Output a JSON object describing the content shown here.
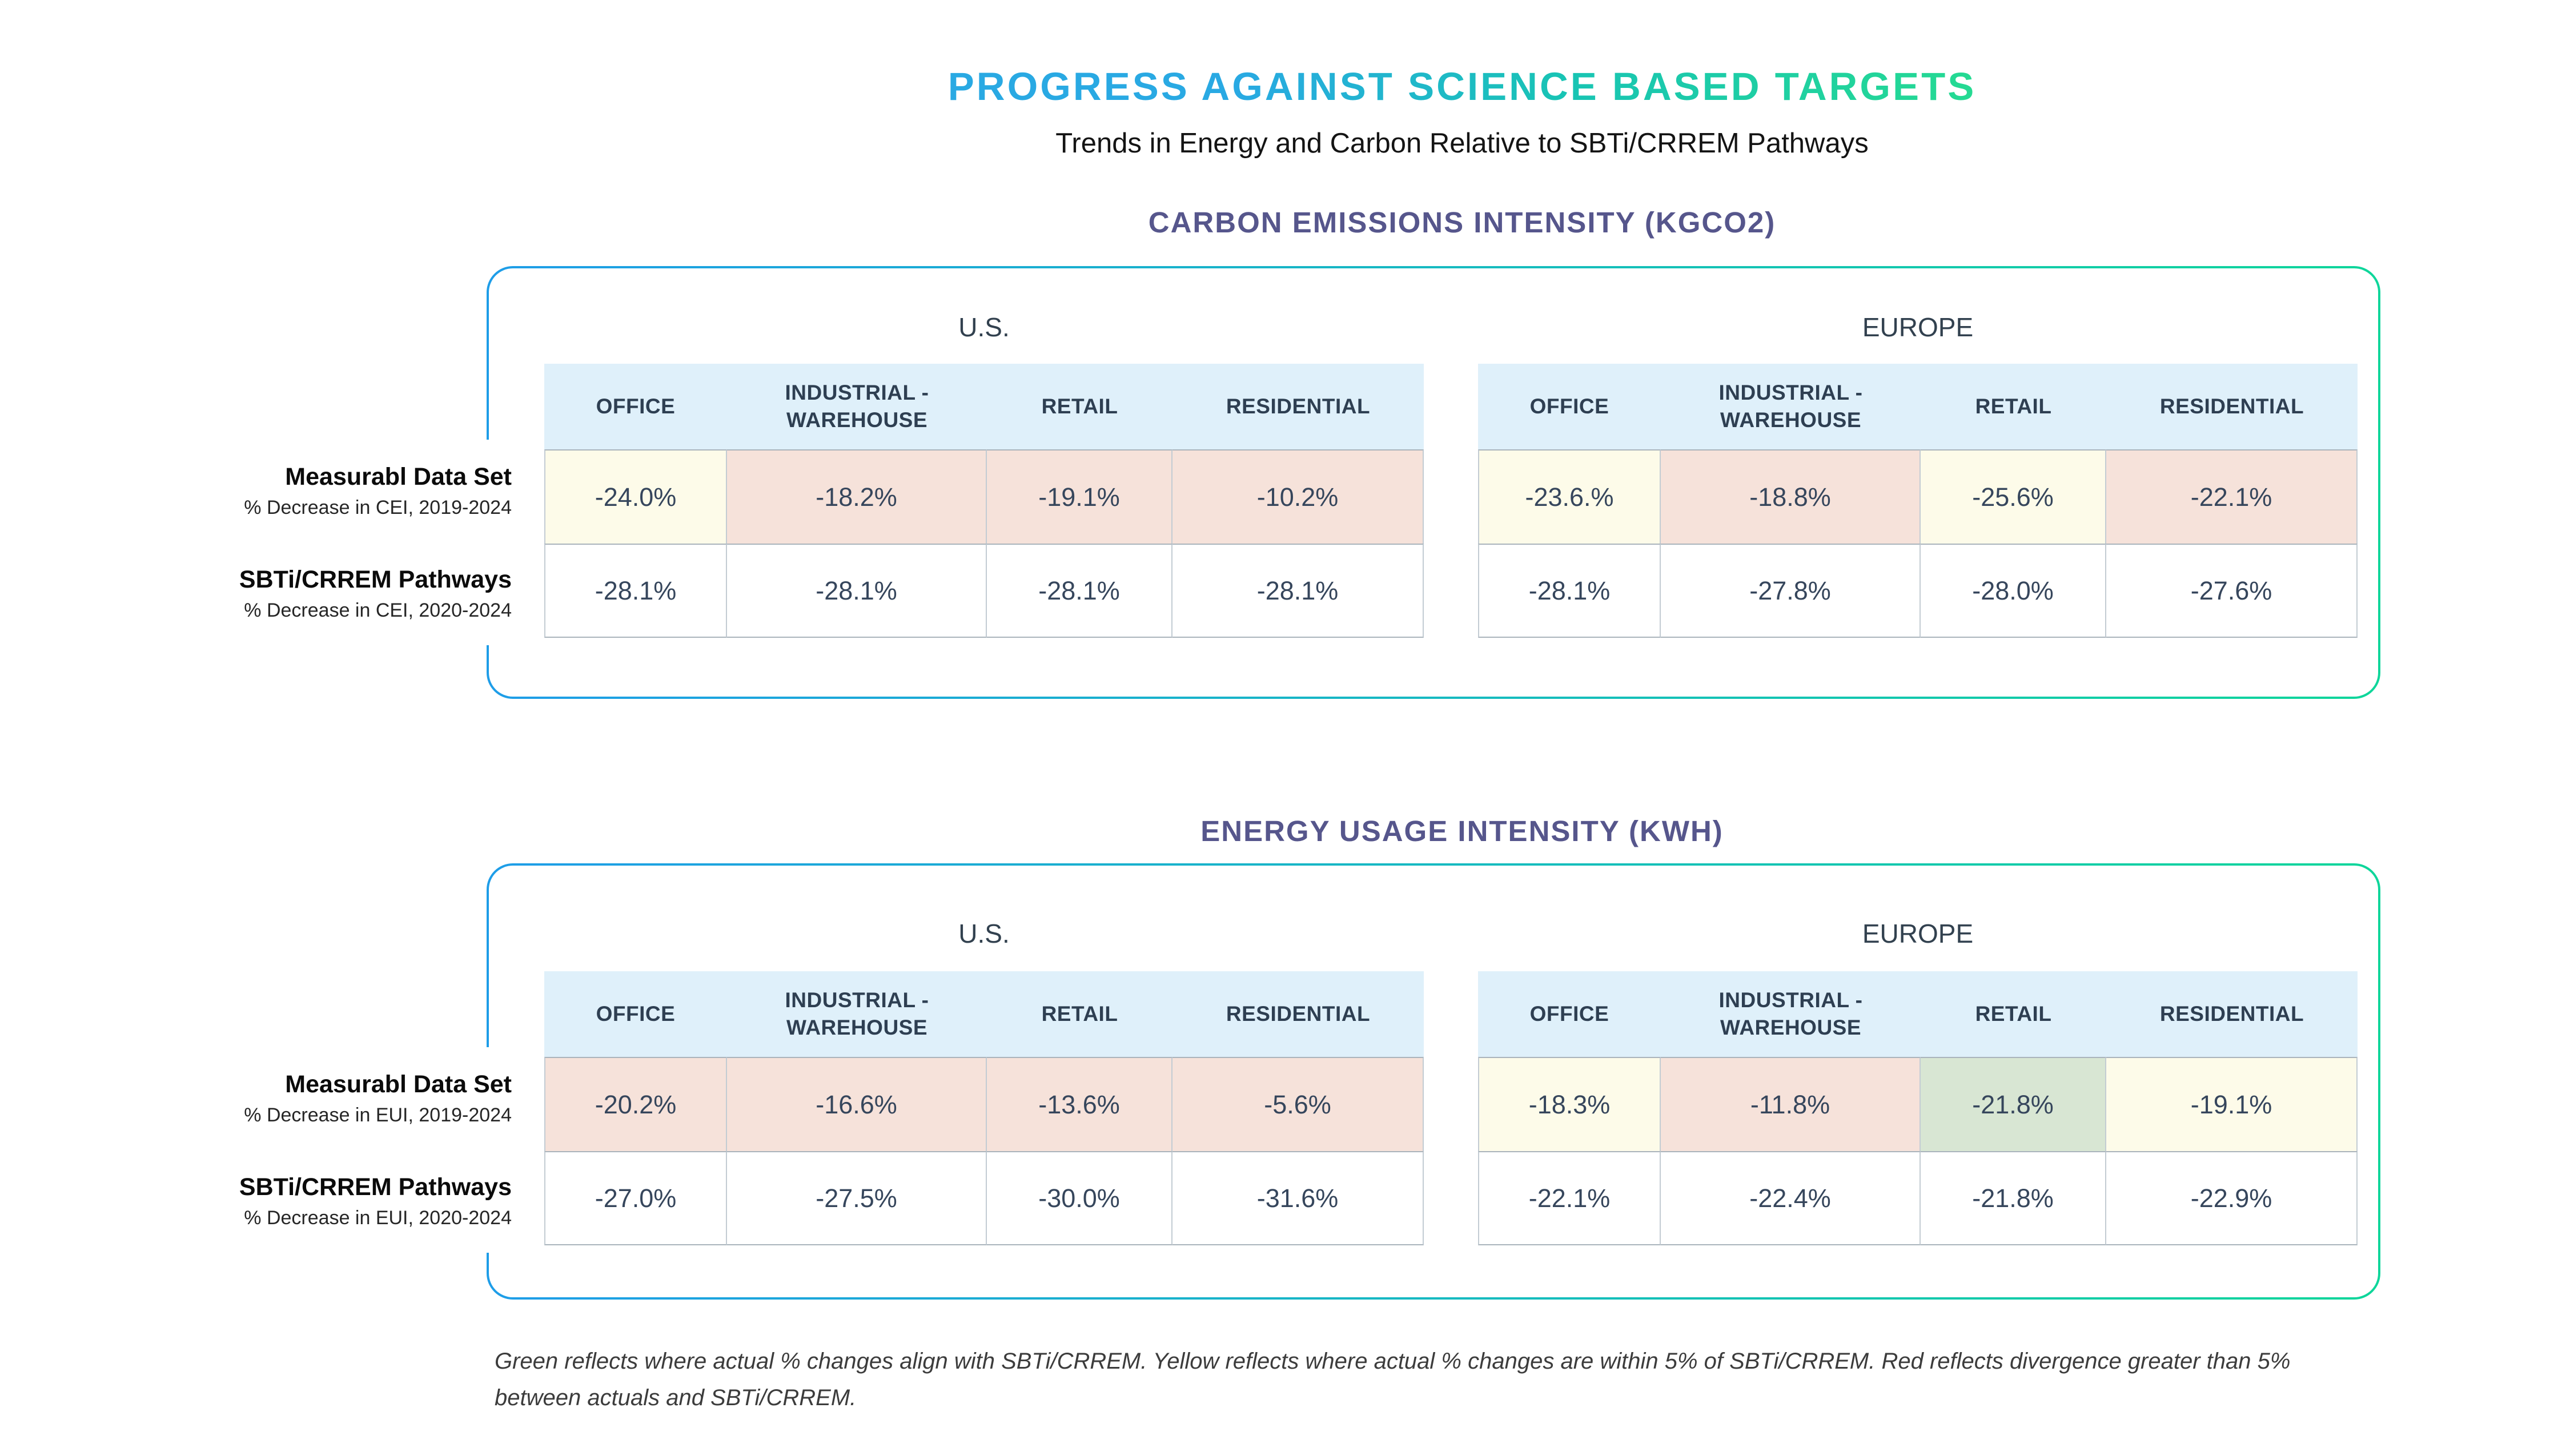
{
  "header": {
    "title": "PROGRESS AGAINST SCIENCE BASED TARGETS",
    "subtitle": "Trends in Energy and Carbon Relative to SBTi/CRREM Pathways"
  },
  "legend_note": {
    "line1": "Green reflects where actual % changes align with SBTi/CRREM. Yellow reflects where actual % changes are within 5% of SBTi/CRREM. Red reflects divergence greater than 5%",
    "line2": "between actuals and SBTi/CRREM."
  },
  "colors": {
    "title_gradient_start": "#29a9e3",
    "title_gradient_end": "#25da92",
    "box_border_gradient_start": "#1e9de8",
    "box_border_gradient_end": "#0ed69a",
    "section_title": "#56568c",
    "column_header_bg": "#dff0fa",
    "status_yellow": "#fdfbe9",
    "status_red": "#f6e2da",
    "status_green": "#d8e6d3",
    "value_text": "#36465c"
  },
  "chart_data": [
    {
      "type": "table",
      "title": "CARBON EMISSIONS INTENSITY (KGCO2)",
      "regions": [
        "U.S.",
        "EUROPE"
      ],
      "columns": [
        "OFFICE",
        "INDUSTRIAL - WAREHOUSE",
        "RETAIL",
        "RESIDENTIAL"
      ],
      "rows": [
        {
          "label": "Measurabl Data Set",
          "sublabel": "% Decrease in CEI, 2019-2024",
          "us": [
            "-24.0%",
            "-18.2%",
            "-19.1%",
            "-10.2%"
          ],
          "us_status": [
            "yellow",
            "red",
            "red",
            "red"
          ],
          "europe": [
            "-23.6.%",
            "-18.8%",
            "-25.6%",
            "-22.1%"
          ],
          "europe_status": [
            "yellow",
            "red",
            "yellow",
            "red"
          ]
        },
        {
          "label": "SBTi/CRREM Pathways",
          "sublabel": "% Decrease in CEI, 2020-2024",
          "us": [
            "-28.1%",
            "-28.1%",
            "-28.1%",
            "-28.1%"
          ],
          "europe": [
            "-28.1%",
            "-27.8%",
            "-28.0%",
            "-27.6%"
          ]
        }
      ]
    },
    {
      "type": "table",
      "title": "ENERGY USAGE INTENSITY (KWH)",
      "regions": [
        "U.S.",
        "EUROPE"
      ],
      "columns": [
        "OFFICE",
        "INDUSTRIAL - WAREHOUSE",
        "RETAIL",
        "RESIDENTIAL"
      ],
      "rows": [
        {
          "label": "Measurabl Data Set",
          "sublabel": "% Decrease in EUI, 2019-2024",
          "us": [
            "-20.2%",
            "-16.6%",
            "-13.6%",
            "-5.6%"
          ],
          "us_status": [
            "red",
            "red",
            "red",
            "red"
          ],
          "europe": [
            "-18.3%",
            "-11.8%",
            "-21.8%",
            "-19.1%"
          ],
          "europe_status": [
            "yellow",
            "red",
            "green",
            "yellow"
          ]
        },
        {
          "label": "SBTi/CRREM Pathways",
          "sublabel": "% Decrease in EUI, 2020-2024",
          "us": [
            "-27.0%",
            "-27.5%",
            "-30.0%",
            "-31.6%"
          ],
          "europe": [
            "-22.1%",
            "-22.4%",
            "-21.8%",
            "-22.9%"
          ]
        }
      ]
    }
  ]
}
